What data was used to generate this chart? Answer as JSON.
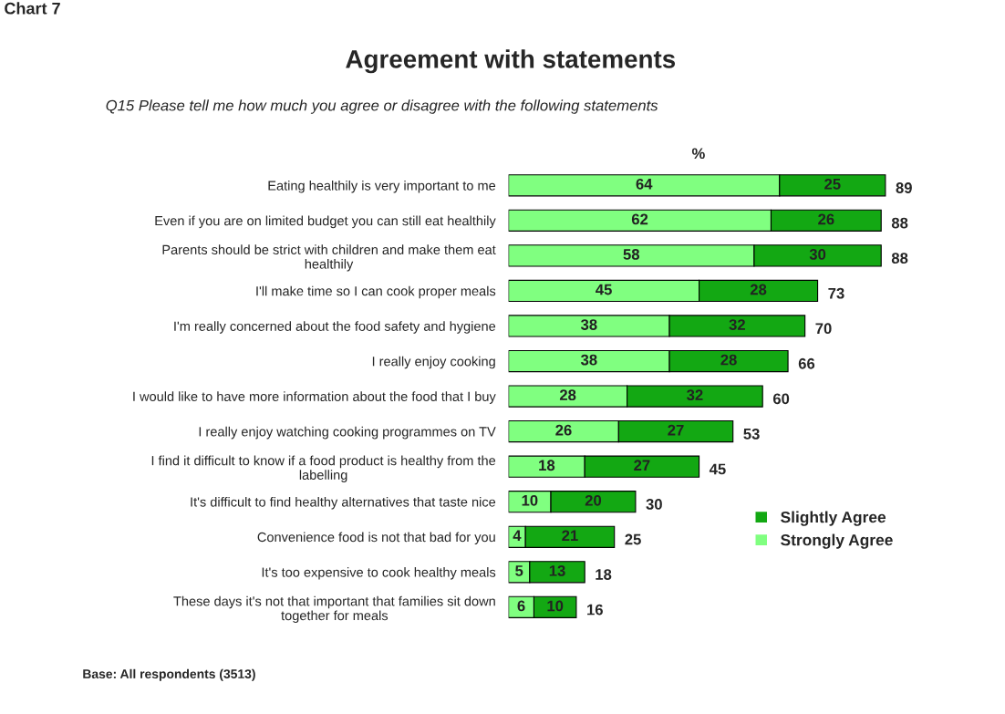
{
  "chart_data": {
    "type": "bar",
    "orientation": "horizontal",
    "stacked": true,
    "data_labels": true,
    "title": "Agreement with statements",
    "subtitle": "Q15 Please tell me how much you agree or disagree with the following statements",
    "xlabel": "%",
    "categories": [
      "Eating healthily is very important to me",
      "Even if you are on limited budget you can still eat healthily",
      "Parents should be strict with children and make them eat\nhealthily",
      "I'll make time so I can cook proper meals",
      "I'm really concerned about the food safety and hygiene",
      "I really enjoy cooking",
      "I would like to have more information about the food that I buy",
      "I really enjoy watching cooking programmes on TV",
      "I find it difficult to know if a food product is healthy from the\nlabelling",
      "It's difficult to find healthy alternatives that taste nice",
      "Convenience food is not that bad for you",
      "It's too expensive to cook healthy meals",
      "These days it's not that important that families sit down\ntogether for meals"
    ],
    "series": [
      {
        "name": "Strongly Agree",
        "color": "#80ff80",
        "values": [
          64,
          62,
          58,
          45,
          38,
          38,
          28,
          26,
          18,
          10,
          4,
          5,
          6
        ]
      },
      {
        "name": "Slightly Agree",
        "color": "#13a813",
        "values": [
          25,
          26,
          30,
          28,
          32,
          28,
          32,
          27,
          27,
          20,
          21,
          13,
          10
        ]
      }
    ],
    "totals": [
      "89",
      "88",
      "88",
      "73",
      "70",
      "66",
      "60",
      "53",
      "45",
      "30",
      "25",
      "18",
      "16"
    ],
    "legend": "right",
    "annotations": [
      "Chart 7",
      "Base: All respondents (3513)"
    ]
  }
}
